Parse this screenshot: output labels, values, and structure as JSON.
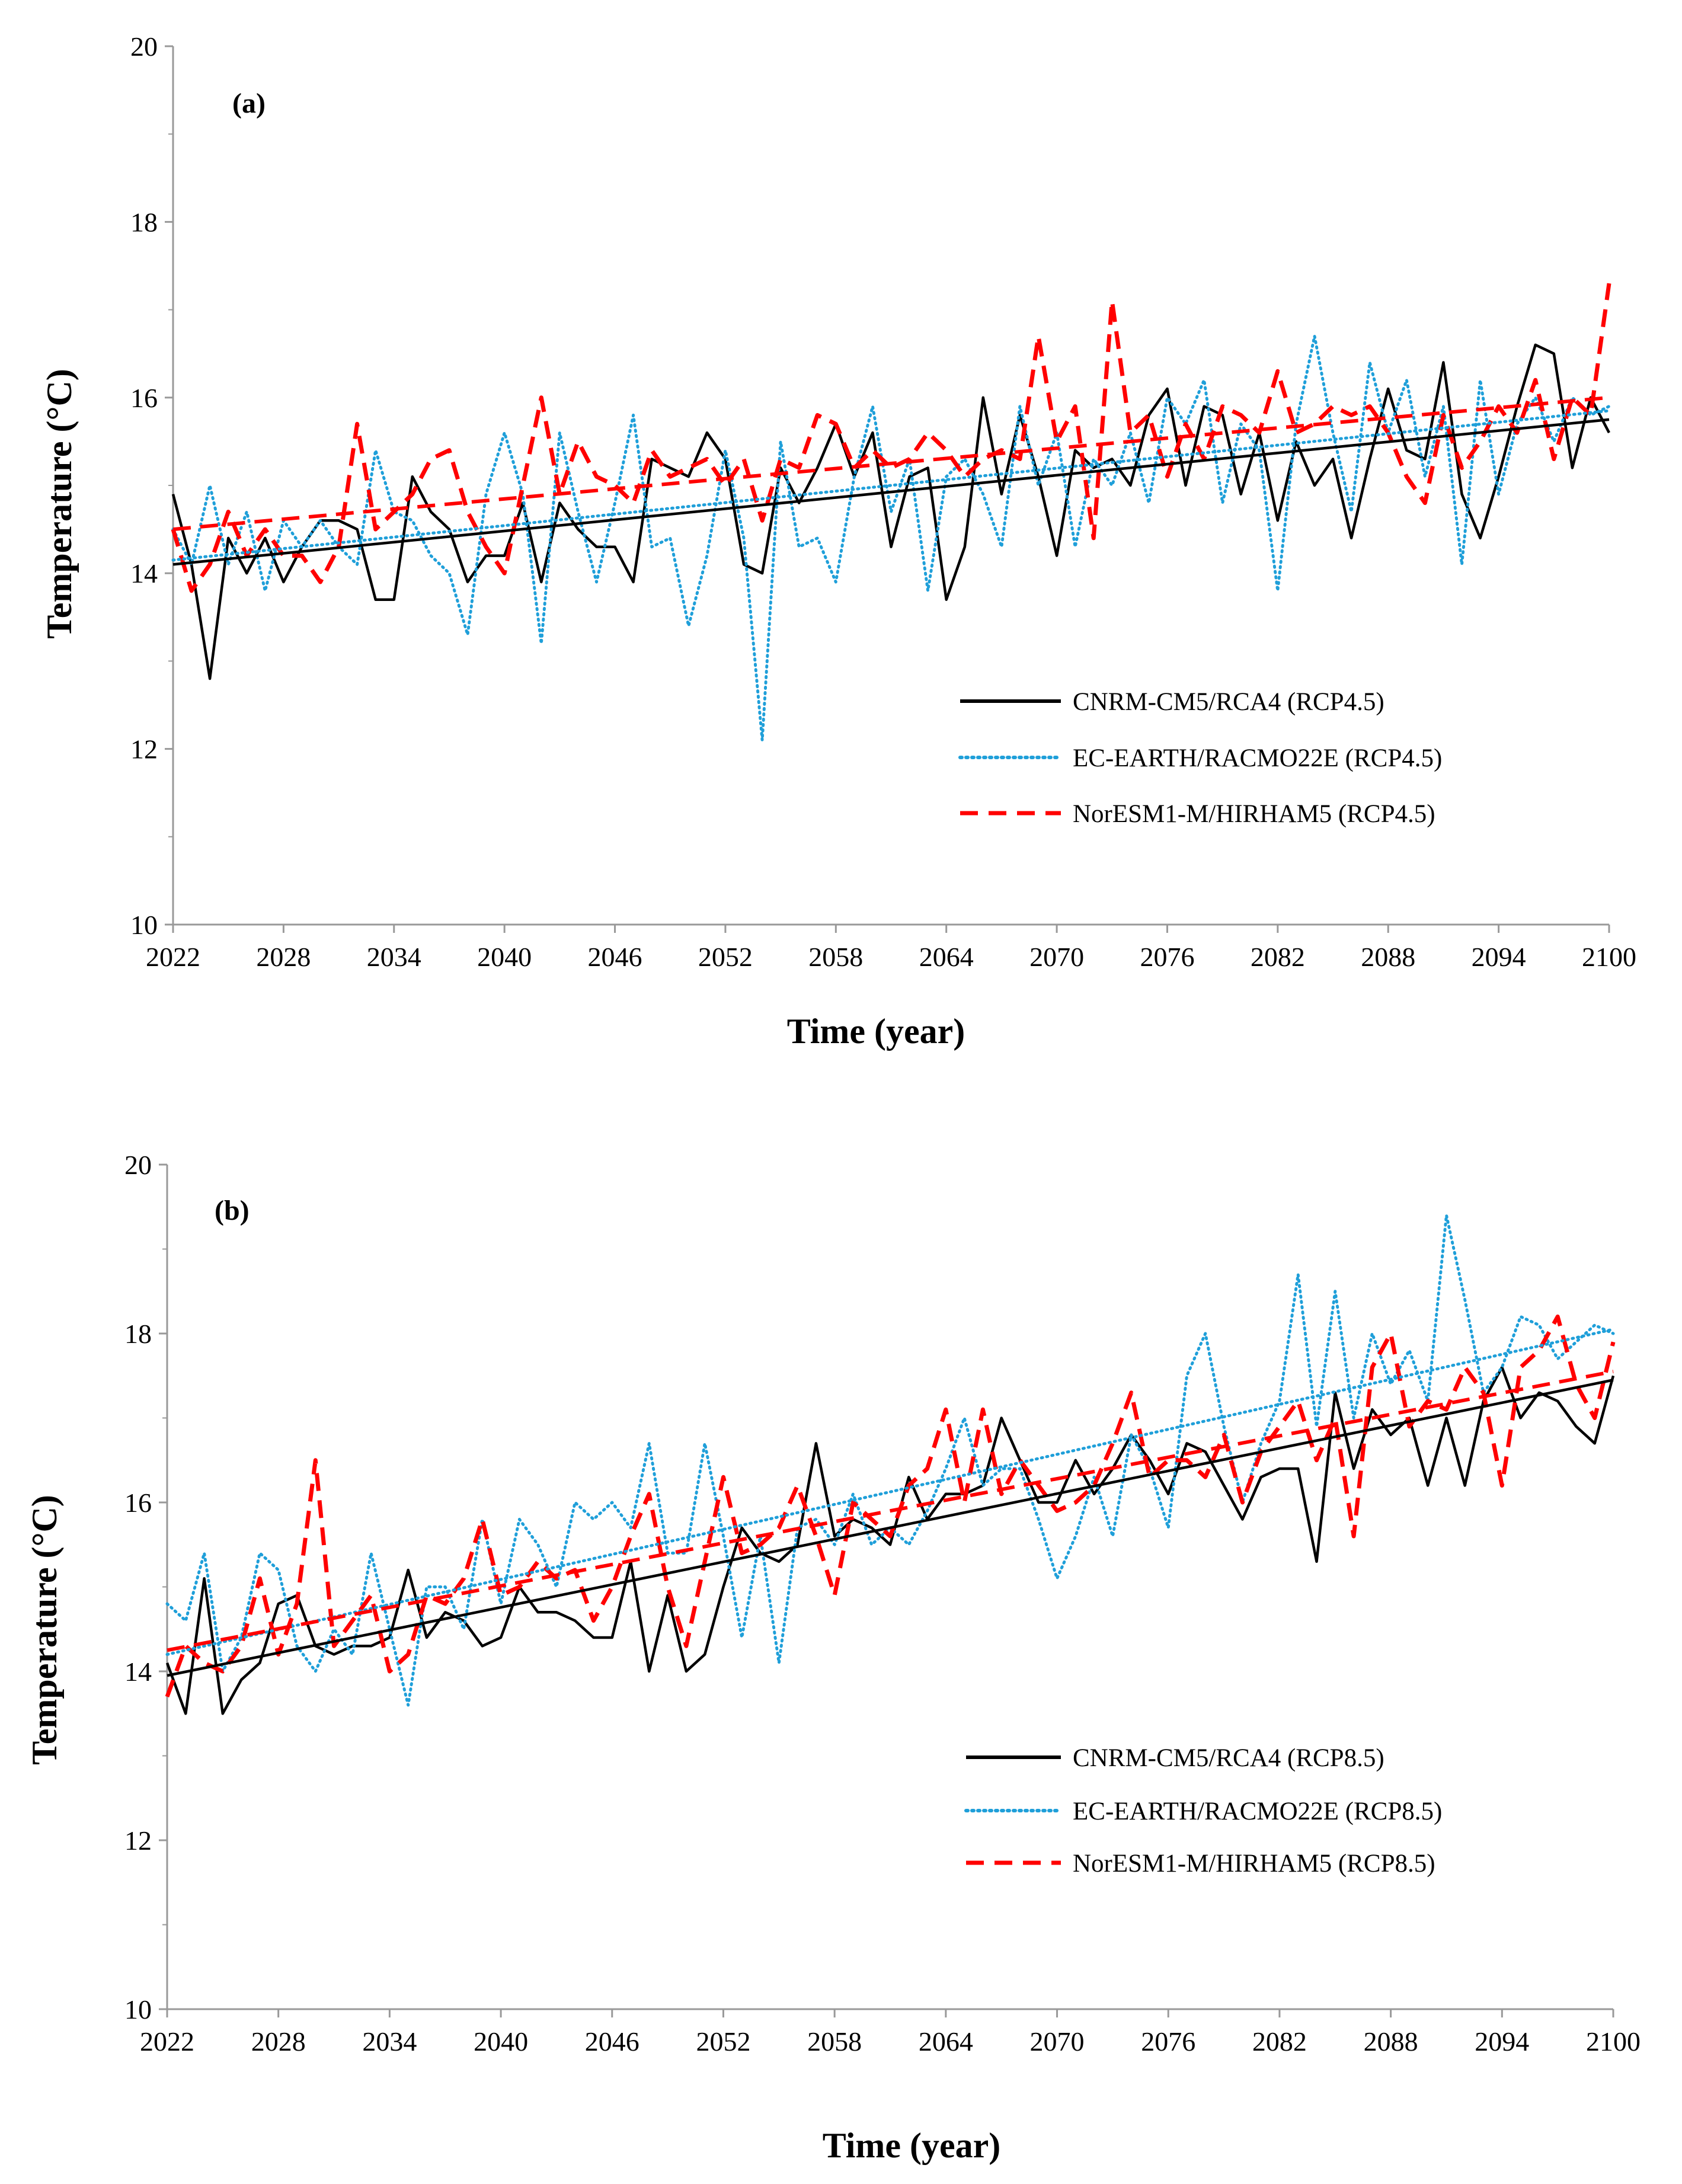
{
  "chart_data": [
    {
      "type": "line",
      "panel_label": "(a)",
      "xlabel": "Time (year)",
      "ylabel": "Temperature (°C)",
      "xlim": [
        2022,
        2100
      ],
      "ylim": [
        10,
        20
      ],
      "x_ticks": [
        "2022",
        "2028",
        "2034",
        "2040",
        "2046",
        "2052",
        "2058",
        "2064",
        "2070",
        "2076",
        "2082",
        "2088",
        "2094",
        "2100"
      ],
      "y_ticks": [
        "10",
        "12",
        "14",
        "16",
        "18",
        "20"
      ],
      "legend_position": "bottom-right",
      "x": [
        2022,
        2023,
        2024,
        2025,
        2026,
        2027,
        2028,
        2029,
        2030,
        2031,
        2032,
        2033,
        2034,
        2035,
        2036,
        2037,
        2038,
        2039,
        2040,
        2041,
        2042,
        2043,
        2044,
        2045,
        2046,
        2047,
        2048,
        2049,
        2050,
        2051,
        2052,
        2053,
        2054,
        2055,
        2056,
        2057,
        2058,
        2059,
        2060,
        2061,
        2062,
        2063,
        2064,
        2065,
        2066,
        2067,
        2068,
        2069,
        2070,
        2071,
        2072,
        2073,
        2074,
        2075,
        2076,
        2077,
        2078,
        2079,
        2080,
        2081,
        2082,
        2083,
        2084,
        2085,
        2086,
        2087,
        2088,
        2089,
        2090,
        2091,
        2092,
        2093,
        2094,
        2095,
        2096,
        2097,
        2098,
        2099,
        2100
      ],
      "series": [
        {
          "name": "CNRM-CM5/RCA4 (RCP4.5)",
          "color": "#000000",
          "style": "solid",
          "values": [
            14.9,
            14.1,
            12.8,
            14.4,
            14.0,
            14.4,
            13.9,
            14.3,
            14.6,
            14.6,
            14.5,
            13.7,
            13.7,
            15.1,
            14.7,
            14.5,
            13.9,
            14.2,
            14.2,
            14.8,
            13.9,
            14.8,
            14.5,
            14.3,
            14.3,
            13.9,
            15.3,
            15.2,
            15.1,
            15.6,
            15.3,
            14.1,
            14.0,
            15.2,
            14.8,
            15.2,
            15.7,
            15.1,
            15.6,
            14.3,
            15.1,
            15.2,
            13.7,
            14.3,
            16.0,
            14.9,
            15.8,
            15.1,
            14.2,
            15.4,
            15.2,
            15.3,
            15.0,
            15.8,
            16.1,
            15.0,
            15.9,
            15.8,
            14.9,
            15.6,
            14.6,
            15.5,
            15.0,
            15.3,
            14.4,
            15.3,
            16.1,
            15.4,
            15.3,
            16.4,
            14.9,
            14.4,
            15.1,
            15.9,
            16.6,
            16.5,
            15.2,
            16.0,
            15.6
          ]
        },
        {
          "name": "EC-EARTH/RACMO22E (RCP4.5)",
          "color": "#1f9fd9",
          "style": "dotted",
          "values": [
            14.5,
            14.1,
            15.0,
            14.1,
            14.7,
            13.8,
            14.6,
            14.3,
            14.6,
            14.3,
            14.1,
            15.4,
            14.7,
            14.6,
            14.2,
            14.0,
            13.3,
            14.9,
            15.6,
            14.9,
            13.2,
            15.6,
            14.7,
            13.9,
            14.8,
            15.8,
            14.3,
            14.4,
            13.4,
            14.2,
            15.4,
            14.4,
            12.1,
            15.5,
            14.3,
            14.4,
            13.9,
            15.1,
            15.9,
            14.7,
            15.3,
            13.8,
            15.1,
            15.3,
            14.9,
            14.3,
            15.9,
            15.0,
            15.6,
            14.3,
            15.3,
            15.0,
            15.6,
            14.8,
            16.0,
            15.7,
            16.2,
            14.8,
            15.7,
            15.4,
            13.8,
            15.7,
            16.7,
            15.6,
            14.7,
            16.4,
            15.6,
            16.2,
            15.1,
            15.9,
            14.1,
            16.2,
            14.9,
            15.7,
            16.0,
            15.5,
            16.0,
            15.8,
            15.9
          ]
        },
        {
          "name": "NorESM1-M/HIRHAM5 (RCP4.5)",
          "color": "#ff0000",
          "style": "dashed",
          "values": [
            14.5,
            13.8,
            14.1,
            14.7,
            14.2,
            14.5,
            14.2,
            14.2,
            13.9,
            14.3,
            15.7,
            14.5,
            14.7,
            14.9,
            15.3,
            15.4,
            14.7,
            14.3,
            14.0,
            15.0,
            16.0,
            14.9,
            15.5,
            15.1,
            15.0,
            14.8,
            15.4,
            15.1,
            15.2,
            15.3,
            15.0,
            15.3,
            14.6,
            15.3,
            15.2,
            15.8,
            15.7,
            15.2,
            15.4,
            15.2,
            15.3,
            15.6,
            15.4,
            15.1,
            15.3,
            15.4,
            15.3,
            16.7,
            15.5,
            15.9,
            14.4,
            17.1,
            15.6,
            15.8,
            15.1,
            15.7,
            15.3,
            15.9,
            15.8,
            15.6,
            16.3,
            15.6,
            15.7,
            15.9,
            15.8,
            15.9,
            15.6,
            15.1,
            14.8,
            15.8,
            15.2,
            15.5,
            15.9,
            15.6,
            16.2,
            15.3,
            16.0,
            15.8,
            17.3
          ]
        },
        {
          "name": "CNRM-CM5/RCA4 (RCP4.5) trend",
          "color": "#000000",
          "style": "trend",
          "trend": [
            14.1,
            15.75
          ]
        },
        {
          "name": "EC-EARTH/RACMO22E (RCP4.5) trend",
          "color": "#1f9fd9",
          "style": "trend-dotted",
          "trend": [
            14.15,
            15.85
          ]
        },
        {
          "name": "NorESM1-M/HIRHAM5 (RCP4.5) trend",
          "color": "#ff0000",
          "style": "trend-dashed",
          "trend": [
            14.5,
            16.0
          ]
        }
      ]
    },
    {
      "type": "line",
      "panel_label": "(b)",
      "xlabel": "Time (year)",
      "ylabel": "Temperature (°C)",
      "xlim": [
        2022,
        2100
      ],
      "ylim": [
        10,
        20
      ],
      "x_ticks": [
        "2022",
        "2028",
        "2034",
        "2040",
        "2046",
        "2052",
        "2058",
        "2064",
        "2070",
        "2076",
        "2082",
        "2088",
        "2094",
        "2100"
      ],
      "y_ticks": [
        "10",
        "12",
        "14",
        "16",
        "18",
        "20"
      ],
      "legend_position": "bottom-right",
      "x": [
        2022,
        2023,
        2024,
        2025,
        2026,
        2027,
        2028,
        2029,
        2030,
        2031,
        2032,
        2033,
        2034,
        2035,
        2036,
        2037,
        2038,
        2039,
        2040,
        2041,
        2042,
        2043,
        2044,
        2045,
        2046,
        2047,
        2048,
        2049,
        2050,
        2051,
        2052,
        2053,
        2054,
        2055,
        2056,
        2057,
        2058,
        2059,
        2060,
        2061,
        2062,
        2063,
        2064,
        2065,
        2066,
        2067,
        2068,
        2069,
        2070,
        2071,
        2072,
        2073,
        2074,
        2075,
        2076,
        2077,
        2078,
        2079,
        2080,
        2081,
        2082,
        2083,
        2084,
        2085,
        2086,
        2087,
        2088,
        2089,
        2090,
        2091,
        2092,
        2093,
        2094,
        2095,
        2096,
        2097,
        2098,
        2099,
        2100
      ],
      "series": [
        {
          "name": "CNRM-CM5/RCA4 (RCP8.5)",
          "color": "#000000",
          "style": "solid",
          "values": [
            14.1,
            13.5,
            15.1,
            13.5,
            13.9,
            14.1,
            14.8,
            14.9,
            14.3,
            14.2,
            14.3,
            14.3,
            14.4,
            15.2,
            14.4,
            14.7,
            14.6,
            14.3,
            14.4,
            15.0,
            14.7,
            14.7,
            14.6,
            14.4,
            14.4,
            15.3,
            14.0,
            14.9,
            14.0,
            14.2,
            15.0,
            15.7,
            15.4,
            15.3,
            15.5,
            16.7,
            15.6,
            15.8,
            15.7,
            15.5,
            16.3,
            15.8,
            16.1,
            16.1,
            16.2,
            17.0,
            16.5,
            16.0,
            16.0,
            16.5,
            16.1,
            16.4,
            16.8,
            16.5,
            16.1,
            16.7,
            16.6,
            16.2,
            15.8,
            16.3,
            16.4,
            16.4,
            15.3,
            17.3,
            16.4,
            17.1,
            16.8,
            17.0,
            16.2,
            17.0,
            16.2,
            17.2,
            17.6,
            17.0,
            17.3,
            17.2,
            16.9,
            16.7,
            17.5
          ]
        },
        {
          "name": "EC-EARTH/RACMO22E (RCP8.5)",
          "color": "#1f9fd9",
          "style": "dotted",
          "values": [
            14.8,
            14.6,
            15.4,
            14.0,
            14.4,
            15.4,
            15.2,
            14.3,
            14.0,
            14.5,
            14.2,
            15.4,
            14.5,
            13.6,
            15.0,
            15.0,
            14.5,
            15.8,
            14.8,
            15.8,
            15.5,
            15.0,
            16.0,
            15.8,
            16.0,
            15.7,
            16.7,
            15.4,
            15.4,
            16.7,
            15.6,
            14.4,
            15.6,
            14.1,
            15.7,
            15.8,
            15.5,
            16.1,
            15.5,
            15.7,
            15.5,
            15.9,
            16.4,
            17.0,
            16.2,
            16.4,
            16.4,
            15.8,
            15.1,
            15.6,
            16.3,
            15.6,
            16.8,
            16.4,
            15.7,
            17.5,
            18.0,
            16.9,
            16.0,
            16.7,
            17.2,
            18.7,
            16.9,
            18.5,
            17.0,
            18.0,
            17.4,
            17.8,
            17.2,
            19.4,
            18.4,
            17.3,
            17.6,
            18.2,
            18.1,
            17.7,
            17.9,
            18.1,
            18.0
          ]
        },
        {
          "name": "NorESM1-M/HIRHAM5 (RCP8.5)",
          "color": "#ff0000",
          "style": "dashed",
          "values": [
            13.7,
            14.3,
            14.1,
            14.0,
            14.3,
            15.1,
            14.2,
            14.8,
            16.5,
            14.3,
            14.6,
            14.9,
            14.0,
            14.2,
            14.9,
            14.8,
            15.1,
            15.8,
            14.9,
            15.0,
            15.3,
            15.1,
            15.2,
            14.6,
            15.0,
            15.6,
            16.1,
            15.0,
            14.3,
            15.3,
            16.3,
            15.4,
            15.5,
            15.7,
            16.2,
            15.6,
            14.9,
            16.0,
            15.8,
            15.6,
            16.2,
            16.4,
            17.1,
            16.0,
            17.1,
            16.1,
            16.5,
            16.2,
            15.9,
            16.0,
            16.2,
            16.7,
            17.3,
            16.3,
            16.5,
            16.5,
            16.3,
            16.8,
            16.0,
            16.6,
            16.9,
            17.2,
            16.5,
            17.0,
            15.6,
            17.6,
            18.0,
            16.9,
            17.2,
            17.1,
            17.6,
            17.3,
            16.2,
            17.6,
            17.8,
            18.2,
            17.4,
            17.0,
            17.9
          ]
        },
        {
          "name": "CNRM-CM5/RCA4 (RCP8.5) trend",
          "color": "#000000",
          "style": "trend",
          "trend": [
            13.95,
            17.45
          ]
        },
        {
          "name": "EC-EARTH/RACMO22E (RCP8.5) trend",
          "color": "#1f9fd9",
          "style": "trend-dotted",
          "trend": [
            14.2,
            18.05
          ]
        },
        {
          "name": "NorESM1-M/HIRHAM5 (RCP8.5) trend",
          "color": "#ff0000",
          "style": "trend-dashed",
          "trend": [
            14.25,
            17.55
          ]
        }
      ]
    }
  ]
}
